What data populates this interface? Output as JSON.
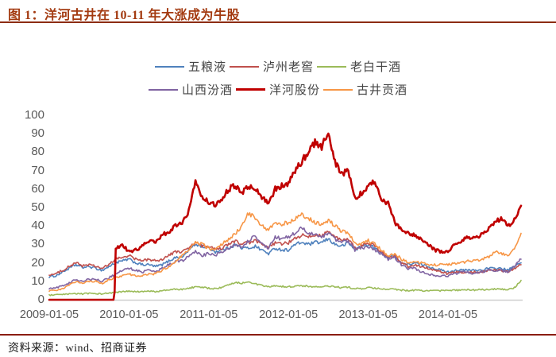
{
  "figure": {
    "title": "图 1：洋河古井在 10-11 年大涨成为牛股",
    "source": "资料来源：wind、招商证券"
  },
  "colors": {
    "title_text": "#a33a10",
    "title_rule": "#8c2c13",
    "footer_rule": "#8a1d12",
    "axis_label": "#595959",
    "legend_label": "#444444",
    "axis_line": "#cfcfcf",
    "background": "#ffffff"
  },
  "chart_data": {
    "type": "line",
    "title": "图 1：洋河古井在 10-11 年大涨成为牛股",
    "xlabel": "",
    "ylabel": "",
    "x_unit": "month",
    "x_start": "2009-01",
    "x_end": "2014-12",
    "xtick_labels": [
      "2009-01-05",
      "2010-01-05",
      "2011-01-05",
      "2012-01-05",
      "2013-01-05",
      "2014-01-05"
    ],
    "xtick_month_index": [
      0,
      12,
      24,
      36,
      48,
      60
    ],
    "ytick_labels": [
      "100",
      "90",
      "80",
      "70",
      "60",
      "50",
      "40",
      "30",
      "20",
      "10",
      "0"
    ],
    "ylim": [
      0,
      100
    ],
    "grid": "none",
    "legend_position": "top-center",
    "series": [
      {
        "id": "wuliangye",
        "name": "五粮液",
        "color": "#4F81BD",
        "emphasis": false,
        "values": [
          12.5,
          13,
          15,
          17,
          19,
          17.5,
          18,
          17,
          16,
          18,
          20,
          21,
          22,
          20,
          19,
          19,
          18,
          19,
          21,
          23,
          23,
          27,
          30,
          29,
          28,
          26,
          27,
          28,
          30,
          28,
          28,
          29,
          27,
          25,
          28,
          27,
          27,
          30,
          31,
          30,
          31,
          31,
          33,
          30,
          29,
          31,
          27,
          29,
          30,
          28,
          25,
          23,
          24,
          20,
          19,
          20,
          19,
          18,
          17,
          16,
          15,
          16,
          16,
          16,
          16,
          16,
          17,
          17,
          17,
          16,
          18,
          20
        ]
      },
      {
        "id": "luzhou-laojiao",
        "name": "泸州老窖",
        "color": "#C0504D",
        "emphasis": false,
        "values": [
          13.5,
          14,
          16,
          18,
          20,
          18.5,
          19,
          18,
          17,
          19,
          22,
          23,
          24,
          22,
          21,
          22,
          21,
          22,
          24,
          26,
          26,
          28,
          31,
          29,
          29,
          27,
          28,
          30,
          32,
          30,
          31,
          32,
          30,
          28,
          31,
          30,
          31,
          33,
          35,
          34,
          35,
          35,
          37,
          34,
          32,
          33,
          28,
          29,
          31,
          29,
          26,
          23,
          24,
          20,
          18,
          19,
          18,
          17,
          16,
          15,
          14,
          15,
          15,
          15,
          15,
          15,
          16,
          16,
          16,
          15,
          17,
          19
        ]
      },
      {
        "id": "laobaigan-jiu",
        "name": "老白干酒",
        "color": "#9BBB59",
        "emphasis": false,
        "values": [
          2.5,
          2.6,
          2.8,
          3,
          3.4,
          3.2,
          3.4,
          3.4,
          3.2,
          3.6,
          4,
          4.3,
          4.6,
          4.3,
          4.4,
          4.6,
          4.5,
          4.9,
          5.3,
          5.7,
          5.6,
          6.3,
          7,
          6.6,
          6.3,
          6,
          6.6,
          8,
          9.5,
          9,
          10,
          8.6,
          7.6,
          7,
          7.5,
          7.2,
          7,
          7.3,
          7.6,
          7.3,
          7,
          6.8,
          7.5,
          7,
          6.5,
          6.8,
          6,
          6,
          6.5,
          6.2,
          5.8,
          5.5,
          5.8,
          5.2,
          5,
          5.2,
          5,
          4.8,
          4.8,
          5,
          5,
          5.2,
          5.2,
          5.4,
          5.3,
          5.5,
          5.6,
          5.8,
          5.7,
          5.6,
          6.5,
          10.5
        ]
      },
      {
        "id": "shanxi-fenjiu",
        "name": "山西汾酒",
        "color": "#8064A2",
        "emphasis": false,
        "values": [
          6,
          6.5,
          7.5,
          9,
          11,
          10,
          11,
          11,
          10,
          12,
          14,
          16,
          17,
          16,
          15,
          16,
          15,
          17,
          19,
          21,
          21,
          24,
          26,
          24,
          25,
          24,
          26,
          28,
          30,
          29,
          32,
          35,
          30,
          28,
          34,
          33,
          34,
          36,
          39,
          36,
          35,
          34,
          36,
          33,
          31,
          32,
          27,
          28,
          29,
          27,
          25,
          22,
          23,
          19,
          17,
          17,
          15,
          14,
          13,
          13,
          13,
          14,
          15,
          15,
          14,
          15,
          16,
          16,
          16,
          15,
          18,
          22
        ]
      },
      {
        "id": "yanghe-gufen",
        "name": "洋河股份",
        "color": "#C00000",
        "emphasis": true,
        "values": [
          0,
          0,
          0,
          0,
          0,
          0,
          0,
          0,
          0,
          0,
          28,
          30,
          26,
          27,
          29,
          32,
          31,
          35,
          37,
          40,
          42,
          48,
          64,
          56,
          53,
          51,
          55,
          60,
          62,
          58,
          62,
          60,
          56,
          52,
          60,
          62,
          63,
          70,
          75,
          80,
          85,
          83,
          91,
          75,
          68,
          70,
          55,
          58,
          62,
          64,
          55,
          52,
          42,
          38,
          36,
          35,
          33,
          30,
          27,
          26,
          26,
          30,
          32,
          34,
          33,
          35,
          38,
          42,
          44,
          40,
          43,
          51
        ]
      },
      {
        "id": "gujing-gongjiu",
        "name": "古井贡酒",
        "color": "#F79646",
        "emphasis": false,
        "values": [
          5,
          5.2,
          6,
          8,
          10,
          9,
          10,
          10,
          9,
          11,
          12,
          13,
          14,
          13,
          13,
          14,
          14,
          16,
          18,
          21,
          24,
          27,
          31,
          30,
          28,
          27,
          30,
          33,
          36,
          40,
          47,
          44,
          40,
          38,
          42,
          41,
          42,
          44,
          46,
          44,
          42,
          41,
          43,
          40,
          37,
          36,
          31,
          30,
          32,
          30,
          27,
          24,
          25,
          22,
          20,
          21,
          20,
          19,
          19,
          19,
          19,
          20,
          20,
          21,
          21,
          22,
          23,
          26,
          25,
          24,
          28,
          36
        ]
      }
    ]
  }
}
